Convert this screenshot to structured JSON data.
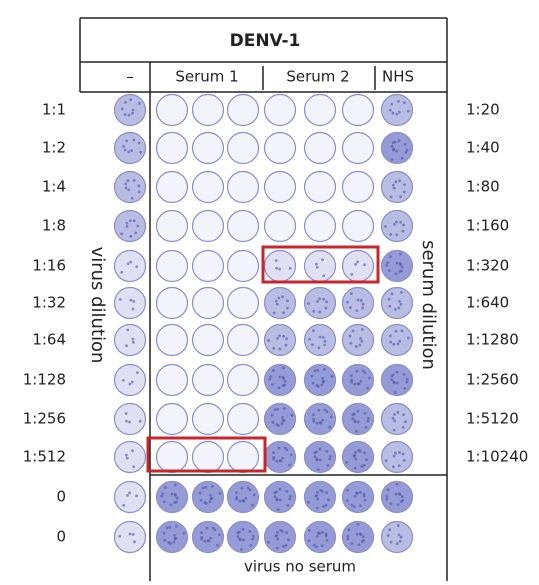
{
  "figure": {
    "title": "DENV-1",
    "column_headers": [
      "–",
      "Serum 1",
      "Serum 2",
      "NHS"
    ],
    "virus_dilutions": [
      "1:1",
      "1:2",
      "1:4",
      "1:8",
      "1:16",
      "1:32",
      "1:64",
      "1:128",
      "1:256",
      "1:512",
      "0",
      "0"
    ],
    "serum_dilutions": [
      "1:20",
      "1:40",
      "1:80",
      "1:160",
      "1:320",
      "1:640",
      "1:1280",
      "1:2560",
      "1:5120",
      "1:10240"
    ],
    "left_axis_label": "virus dilution",
    "right_axis_label": "serum dilution",
    "bottom_label": "virus no serum"
  }
}
